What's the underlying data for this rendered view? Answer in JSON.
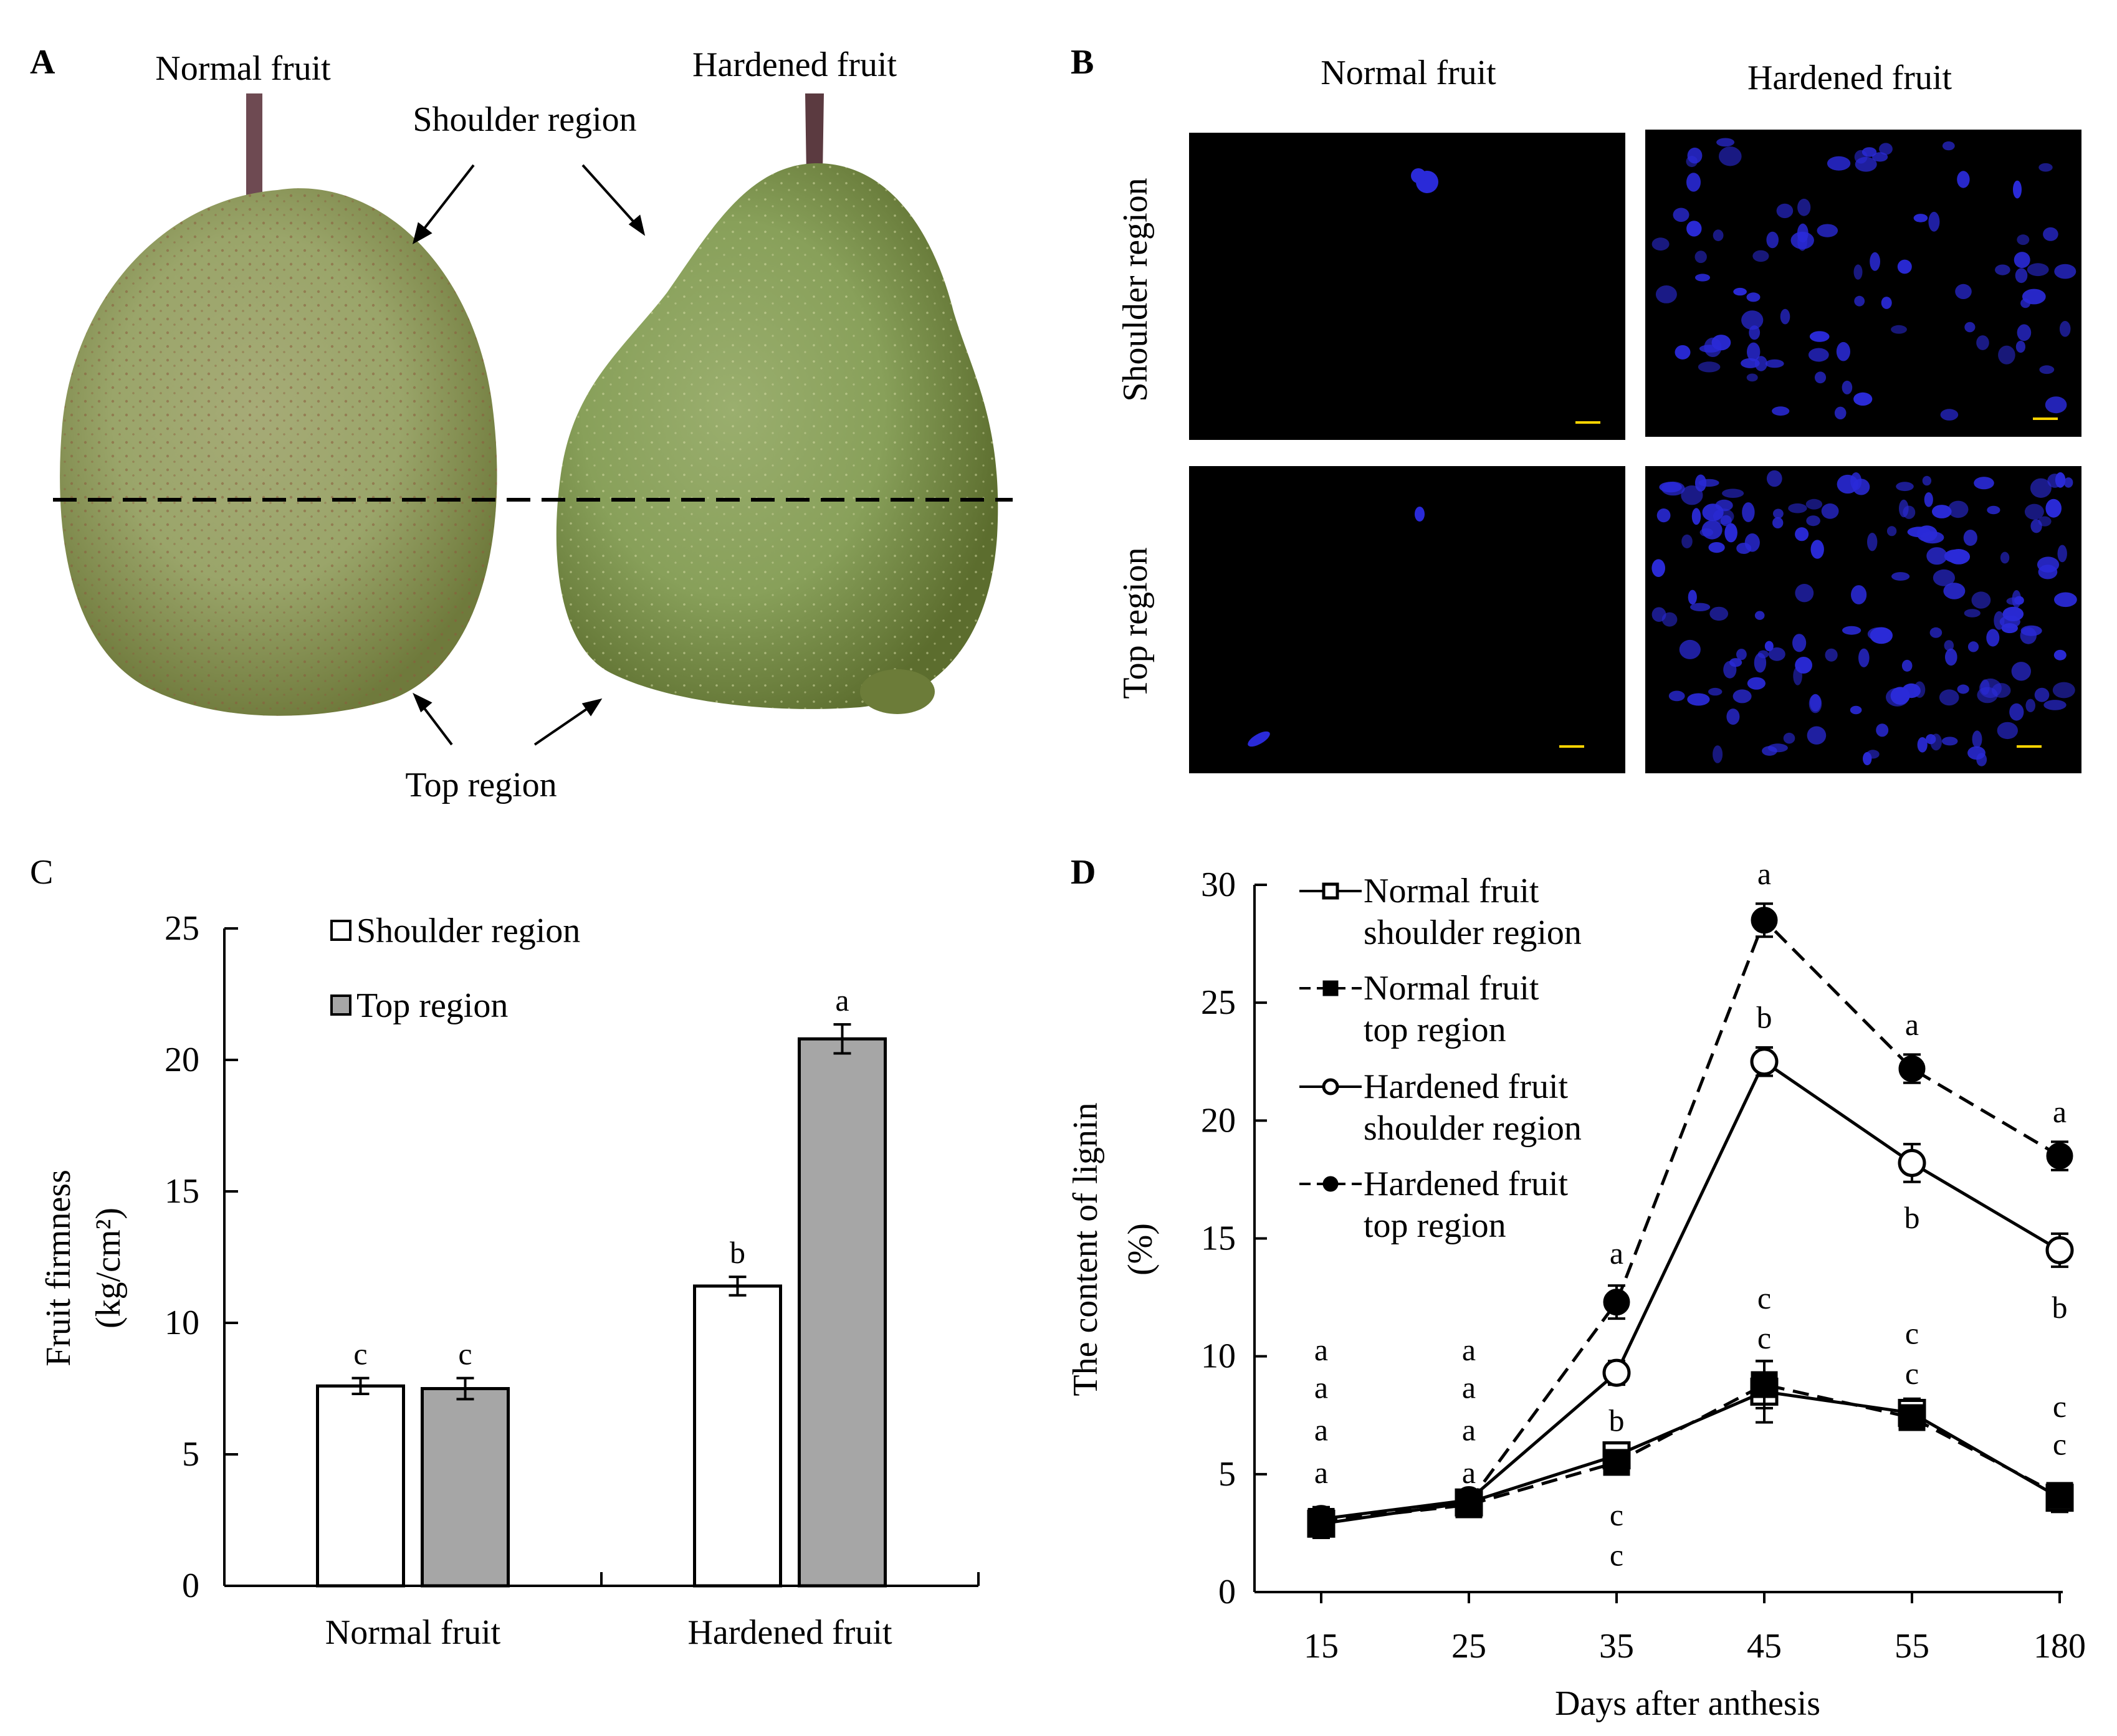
{
  "panel_a": {
    "letter": "A",
    "normal_label": "Normal fruit",
    "hardened_label": "Hardened fruit",
    "shoulder_label": "Shoulder region",
    "top_label": "Top region"
  },
  "panel_b": {
    "letter": "B",
    "col_normal": "Normal fruit",
    "col_hardened": "Hardened fruit",
    "row_shoulder": "Shoulder region",
    "row_top": "Top region"
  },
  "chart_data": [
    {
      "panel": "C",
      "type": "bar",
      "title": "",
      "xlabel": "",
      "ylabel_line1": "Fruit firmness",
      "ylabel_line2": "(kg/cm²)",
      "ylim": [
        0,
        25
      ],
      "yticks": [
        "0",
        "5",
        "10",
        "15",
        "20",
        "25"
      ],
      "categories": [
        "Normal fruit",
        "Hardened fruit"
      ],
      "series": [
        {
          "name": "Shoulder region",
          "color": "#ffffff",
          "values": [
            7.6,
            11.4
          ],
          "errors": [
            0.3,
            0.35
          ],
          "letters": [
            "c",
            "b"
          ]
        },
        {
          "name": "Top region",
          "color": "#a6a6a6",
          "values": [
            7.5,
            20.8
          ],
          "errors": [
            0.4,
            0.55
          ],
          "letters": [
            "c",
            "a"
          ]
        }
      ],
      "legend_position": "top-left"
    },
    {
      "panel": "D",
      "type": "line",
      "title": "",
      "xlabel": "Days after anthesis",
      "ylabel_line1": "The content of lignin",
      "ylabel_line2": "(%)",
      "ylim": [
        0,
        30
      ],
      "yticks": [
        "0",
        "5",
        "10",
        "15",
        "20",
        "25",
        "30"
      ],
      "x": [
        "15",
        "25",
        "35",
        "45",
        "55",
        "180"
      ],
      "series": [
        {
          "name_line1": "Normal fruit",
          "name_line2": "shoulder region",
          "marker": "open-square",
          "dash": "solid",
          "values": [
            2.9,
            3.8,
            5.8,
            8.5,
            7.6,
            4.0
          ],
          "errors": [
            0.6,
            0.4,
            0.5,
            1.3,
            0.6,
            0.6
          ]
        },
        {
          "name_line1": "Normal fruit",
          "name_line2": "top region",
          "marker": "filled-square",
          "dash": "dashed",
          "values": [
            3.0,
            3.7,
            5.5,
            8.8,
            7.4,
            4.1
          ],
          "errors": [
            0.5,
            0.4,
            0.5,
            1.0,
            0.5,
            0.5
          ]
        },
        {
          "name_line1": "Hardened fruit",
          "name_line2": "shoulder region",
          "marker": "open-circle",
          "dash": "solid",
          "values": [
            3.1,
            3.9,
            9.3,
            22.5,
            18.2,
            14.5
          ],
          "errors": [
            0.5,
            0.4,
            0.5,
            0.6,
            0.8,
            0.7
          ]
        },
        {
          "name_line1": "Hardened fruit",
          "name_line2": "top region",
          "marker": "filled-circle",
          "dash": "dashed",
          "values": [
            3.0,
            3.8,
            12.3,
            28.5,
            22.2,
            18.5
          ],
          "errors": [
            0.5,
            0.4,
            0.7,
            0.7,
            0.6,
            0.6
          ]
        }
      ],
      "sig_letters": [
        {
          "x": "15",
          "text": "a",
          "level": 10.2
        },
        {
          "x": "15",
          "text": "a",
          "level": 8.6
        },
        {
          "x": "15",
          "text": "a",
          "level": 6.8
        },
        {
          "x": "15",
          "text": "a",
          "level": 5.0
        },
        {
          "x": "25",
          "text": "a",
          "level": 10.2
        },
        {
          "x": "25",
          "text": "a",
          "level": 8.6
        },
        {
          "x": "25",
          "text": "a",
          "level": 6.8
        },
        {
          "x": "25",
          "text": "a",
          "level": 5.0
        },
        {
          "x": "35",
          "text": "a",
          "level": 14.3
        },
        {
          "x": "35",
          "text": "b",
          "level": 7.2
        },
        {
          "x": "35",
          "text": "c",
          "level": 3.2
        },
        {
          "x": "35",
          "text": "c",
          "level": 1.5
        },
        {
          "x": "45",
          "text": "a",
          "level": 30.4
        },
        {
          "x": "45",
          "text": "b",
          "level": 24.3
        },
        {
          "x": "45",
          "text": "c",
          "level": 12.4
        },
        {
          "x": "45",
          "text": "c",
          "level": 10.7
        },
        {
          "x": "55",
          "text": "a",
          "level": 24.0
        },
        {
          "x": "55",
          "text": "b",
          "level": 15.8
        },
        {
          "x": "55",
          "text": "c",
          "level": 10.9
        },
        {
          "x": "55",
          "text": "c",
          "level": 9.2
        },
        {
          "x": "180",
          "text": "a",
          "level": 20.3
        },
        {
          "x": "180",
          "text": "b",
          "level": 12.0
        },
        {
          "x": "180",
          "text": "c",
          "level": 7.8
        },
        {
          "x": "180",
          "text": "c",
          "level": 6.2
        }
      ],
      "legend_position": "top-left"
    }
  ],
  "colors": {
    "fruit_green": "#8f9a55",
    "fluorescence": "#2a2ad8",
    "grey_bar": "#a6a6a6"
  }
}
